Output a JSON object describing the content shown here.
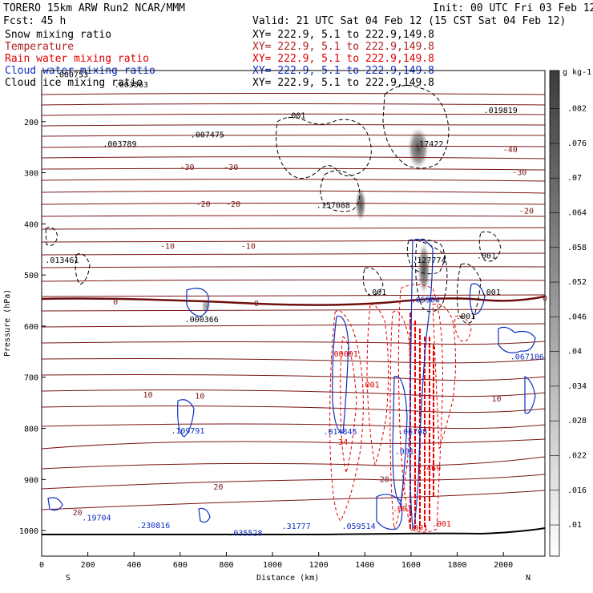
{
  "header": {
    "model": "TORERO  15km ARW   Run2    NCAR/MMM",
    "init": "Init: 00 UTC Fri 03 Feb 12",
    "fcst": "Fcst:   45 h",
    "valid": "Valid: 21 UTC Sat 04 Feb 12 (15 CST Sat 04 Feb 12)"
  },
  "fields": [
    {
      "name": "Snow mixing ratio",
      "xy": "XY= 222.9,  5.1 to 222.9,149.8",
      "color": "#000000"
    },
    {
      "name": "Temperature",
      "xy": "XY= 222.9,  5.1 to 222.9,149.8",
      "color": "#b02020"
    },
    {
      "name": "Rain water mixing ratio",
      "xy": "XY= 222.9,  5.1 to 222.9,149.8",
      "color": "#e00000"
    },
    {
      "name": "Cloud water mixing ratio",
      "xy": "XY= 222.9,  5.1 to 222.9,149.8",
      "color": "#1030c0"
    },
    {
      "name": "Cloud ice mixing ratio",
      "xy": "XY= 222.9,  5.1 to 222.9,149.8",
      "color": "#000000"
    }
  ],
  "chart_data": {
    "type": "contour",
    "xlabel": "Distance (km)",
    "ylabel": "Pressure (hPa)",
    "xlim": [
      0,
      2180
    ],
    "ylim": [
      1050,
      100
    ],
    "xticks": [
      0,
      200,
      400,
      600,
      800,
      1000,
      1200,
      1400,
      1600,
      1800,
      2000
    ],
    "yticks": [
      200,
      300,
      400,
      500,
      600,
      700,
      800,
      900,
      1000
    ],
    "end_labels": {
      "left": "S",
      "right": "N"
    },
    "colorbar": {
      "unit": "g kg-1",
      "ticks": [
        ".01",
        ".016",
        ".022",
        ".028",
        ".034",
        ".04",
        ".046",
        ".052",
        ".058",
        ".064",
        ".07",
        ".076",
        ".082"
      ]
    },
    "temperature_labels": [
      {
        "text": "-40",
        "x": 2030,
        "p": 255
      },
      {
        "text": "-30",
        "x": 630,
        "p": 290
      },
      {
        "text": "-30",
        "x": 820,
        "p": 290
      },
      {
        "text": "-30",
        "x": 2070,
        "p": 300
      },
      {
        "text": "-20",
        "x": 700,
        "p": 362
      },
      {
        "text": "-20",
        "x": 830,
        "p": 362
      },
      {
        "text": "-20",
        "x": 2100,
        "p": 375
      },
      {
        "text": "-10",
        "x": 545,
        "p": 444
      },
      {
        "text": "-10",
        "x": 895,
        "p": 444
      },
      {
        "text": "0",
        "x": 320,
        "p": 553
      },
      {
        "text": "0",
        "x": 930,
        "p": 556
      },
      {
        "text": "0",
        "x": 2180,
        "p": 546
      },
      {
        "text": "10",
        "x": 460,
        "p": 735
      },
      {
        "text": "10",
        "x": 685,
        "p": 737
      },
      {
        "text": "10",
        "x": 1970,
        "p": 743
      },
      {
        "text": "20",
        "x": 765,
        "p": 915
      },
      {
        "text": "20",
        "x": 1485,
        "p": 900
      },
      {
        "text": "20",
        "x": 155,
        "p": 965
      }
    ],
    "maxima_labels": [
      {
        "text": ".000753",
        "x": 55,
        "p": 113,
        "color": "#000000"
      },
      {
        "text": ".003563",
        "x": 315,
        "p": 133,
        "color": "#000000"
      },
      {
        "text": ".003789",
        "x": 265,
        "p": 249,
        "color": "#000000"
      },
      {
        "text": ".007475",
        "x": 645,
        "p": 231,
        "color": "#000000"
      },
      {
        "text": ".001",
        "x": 1060,
        "p": 193,
        "color": "#000000"
      },
      {
        "text": ".17422",
        "x": 1615,
        "p": 249,
        "color": "#000000"
      },
      {
        "text": ".019819",
        "x": 1915,
        "p": 183,
        "color": "#000000"
      },
      {
        "text": ".157088",
        "x": 1190,
        "p": 369,
        "color": "#000000"
      },
      {
        "text": ".013461",
        "x": 15,
        "p": 476,
        "color": "#000000"
      },
      {
        "text": ".127774",
        "x": 1605,
        "p": 476,
        "color": "#000000"
      },
      {
        "text": ".001",
        "x": 1885,
        "p": 468,
        "color": "#000000"
      },
      {
        "text": ".001",
        "x": 1410,
        "p": 539,
        "color": "#000000"
      },
      {
        "text": ".001",
        "x": 1905,
        "p": 539,
        "color": "#000000"
      },
      {
        "text": ".05504",
        "x": 1600,
        "p": 554,
        "color": "#1030c0"
      },
      {
        "text": ".000366",
        "x": 620,
        "p": 592,
        "color": "#000000"
      },
      {
        "text": ".001",
        "x": 1795,
        "p": 586,
        "color": "#000000"
      },
      {
        "text": ".067106",
        "x": 2030,
        "p": 665,
        "color": "#1030c0"
      },
      {
        "text": ".00001",
        "x": 1245,
        "p": 660,
        "color": "#e00000"
      },
      {
        "text": ".001",
        "x": 1380,
        "p": 720,
        "color": "#e00000"
      },
      {
        "text": ".109791",
        "x": 560,
        "p": 810,
        "color": "#1030c0"
      },
      {
        "text": ".014845",
        "x": 1220,
        "p": 812,
        "color": "#1030c0"
      },
      {
        "text": ".06708",
        "x": 1545,
        "p": 812,
        "color": "#1030c0"
      },
      {
        "text": "34",
        "x": 1285,
        "p": 832,
        "color": "#e00000"
      },
      {
        "text": ".001",
        "x": 1530,
        "p": 850,
        "color": "#1030c0"
      },
      {
        "text": "1.469",
        "x": 1625,
        "p": 883,
        "color": "#e00000"
      },
      {
        "text": ".19704",
        "x": 175,
        "p": 980,
        "color": "#1030c0"
      },
      {
        "text": ".230816",
        "x": 410,
        "p": 995,
        "color": "#1030c0"
      },
      {
        "text": ".035528",
        "x": 810,
        "p": 1010,
        "color": "#1030c0"
      },
      {
        "text": ".31777",
        "x": 1040,
        "p": 997,
        "color": "#1030c0"
      },
      {
        "text": ".059514",
        "x": 1300,
        "p": 997,
        "color": "#1030c0"
      },
      {
        "text": ".001",
        "x": 1520,
        "p": 962,
        "color": "#e00000"
      },
      {
        "text": ".001",
        "x": 1590,
        "p": 1000,
        "color": "#e00000"
      },
      {
        "text": ".001",
        "x": 1690,
        "p": 992,
        "color": "#e00000"
      }
    ]
  }
}
